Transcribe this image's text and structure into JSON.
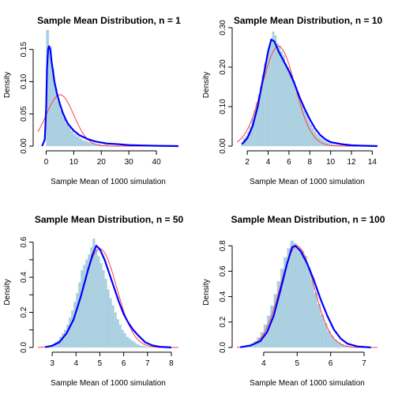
{
  "colors": {
    "bars": "#a9cfe0",
    "density": "#0000ff",
    "normal": "#ff4040",
    "axis": "#000000"
  },
  "chart_data": [
    {
      "type": "bar",
      "title": "Sample Mean Distribution, n = 1",
      "xlabel": "Sample Mean of 1000 simulation",
      "ylabel": "Density",
      "xlim": [
        -3,
        48
      ],
      "ylim": [
        0,
        0.19
      ],
      "xticks": [
        0,
        10,
        20,
        30,
        40
      ],
      "yticks": [
        0,
        0.05,
        0.1,
        0.15
      ],
      "xtick_labels": [
        "0",
        "10",
        "20",
        "30",
        "40"
      ],
      "ytick_labels": [
        "0.00",
        "0.05",
        "0.10",
        "0.15"
      ],
      "bin_width": 1,
      "bin_start": 0,
      "hist": [
        0.18,
        0.155,
        0.12,
        0.09,
        0.07,
        0.055,
        0.045,
        0.036,
        0.029,
        0.023,
        0.018,
        0.015,
        0.012,
        0.009,
        0.008,
        0.006,
        0.005,
        0.004,
        0.003,
        0.003,
        0.002,
        0.002,
        0.0015,
        0.001,
        0.001,
        0.001,
        0.001,
        0.0005,
        0.0005,
        0.0005
      ],
      "density": {
        "x": [
          -1.5,
          -0.5,
          0,
          0.3,
          0.7,
          1.0,
          1.5,
          2.0,
          3.0,
          4.0,
          5.0,
          6.0,
          7.0,
          8.0,
          10.0,
          12.0,
          15.0,
          18.0,
          22.0,
          26.0,
          30.0,
          35.0,
          40.0,
          48.0
        ],
        "y": [
          0.0,
          0.01,
          0.06,
          0.12,
          0.15,
          0.155,
          0.15,
          0.13,
          0.1,
          0.08,
          0.065,
          0.052,
          0.042,
          0.034,
          0.024,
          0.017,
          0.011,
          0.007,
          0.004,
          0.003,
          0.0015,
          0.001,
          0.0005,
          0.0
        ]
      },
      "normal": {
        "mean": 5.0,
        "sd": 5.0
      }
    },
    {
      "type": "bar",
      "title": "Sample Mean Distribution, n = 10",
      "xlabel": "Sample Mean of 1000 simulation",
      "ylabel": "Density",
      "xlim": [
        1.0,
        14.5
      ],
      "ylim": [
        0,
        0.31
      ],
      "xticks": [
        2,
        4,
        6,
        8,
        10,
        12,
        14
      ],
      "yticks": [
        0,
        0.1,
        0.2,
        0.3
      ],
      "xtick_labels": [
        "2",
        "4",
        "6",
        "8",
        "10",
        "12",
        "14"
      ],
      "ytick_labels": [
        "0.00",
        "0.10",
        "0.20",
        "0.30"
      ],
      "bin_width": 0.2,
      "bin_start": 1.4,
      "hist": [
        0.01,
        0.02,
        0.025,
        0.035,
        0.05,
        0.07,
        0.09,
        0.11,
        0.13,
        0.15,
        0.18,
        0.21,
        0.23,
        0.25,
        0.27,
        0.29,
        0.28,
        0.26,
        0.255,
        0.24,
        0.23,
        0.21,
        0.2,
        0.19,
        0.18,
        0.165,
        0.15,
        0.135,
        0.12,
        0.105,
        0.09,
        0.08,
        0.065,
        0.055,
        0.045,
        0.037,
        0.03,
        0.024,
        0.019,
        0.015,
        0.012,
        0.009,
        0.007,
        0.005,
        0.004,
        0.003,
        0.002,
        0.002,
        0.001,
        0.001
      ],
      "density": {
        "x": [
          1.5,
          2.0,
          2.5,
          3.0,
          3.5,
          4.0,
          4.3,
          4.6,
          5.0,
          5.5,
          6.0,
          6.5,
          7.0,
          7.5,
          8.0,
          8.5,
          9.0,
          9.5,
          10.0,
          11.0,
          12.0,
          13.0,
          14.5
        ],
        "y": [
          0.005,
          0.02,
          0.05,
          0.1,
          0.17,
          0.24,
          0.27,
          0.265,
          0.24,
          0.215,
          0.19,
          0.16,
          0.125,
          0.095,
          0.068,
          0.045,
          0.028,
          0.017,
          0.01,
          0.005,
          0.002,
          0.001,
          0.0
        ]
      },
      "normal": {
        "mean": 5.0,
        "sd": 1.58
      }
    },
    {
      "type": "bar",
      "title": "Sample Mean Distribution, n = 50",
      "xlabel": "Sample Mean of 1000 simulation",
      "ylabel": "Density",
      "xlim": [
        2.4,
        8.3
      ],
      "ylim": [
        0,
        0.63
      ],
      "xticks": [
        3,
        4,
        5,
        6,
        7,
        8
      ],
      "yticks": [
        0,
        0.2,
        0.4,
        0.6
      ],
      "xtick_labels": [
        "3",
        "4",
        "5",
        "6",
        "7",
        "8"
      ],
      "ytick_labels": [
        "0.0",
        "0.2",
        "0.4",
        "0.6"
      ],
      "minor_yticks": [
        0.1,
        0.3,
        0.5
      ],
      "bin_width": 0.1,
      "bin_start": 2.7,
      "hist": [
        0.005,
        0.01,
        0.01,
        0.02,
        0.03,
        0.04,
        0.06,
        0.08,
        0.1,
        0.13,
        0.17,
        0.21,
        0.26,
        0.31,
        0.37,
        0.44,
        0.47,
        0.5,
        0.53,
        0.57,
        0.62,
        0.56,
        0.52,
        0.48,
        0.44,
        0.39,
        0.33,
        0.28,
        0.24,
        0.2,
        0.16,
        0.13,
        0.1,
        0.08,
        0.06,
        0.05,
        0.04,
        0.03,
        0.02,
        0.015,
        0.01,
        0.008,
        0.005,
        0.004,
        0.003,
        0.002,
        0.001
      ],
      "density": {
        "x": [
          2.7,
          3.0,
          3.3,
          3.6,
          3.9,
          4.2,
          4.5,
          4.7,
          4.85,
          5.0,
          5.2,
          5.4,
          5.6,
          5.8,
          6.0,
          6.2,
          6.4,
          6.6,
          6.9,
          7.2,
          7.5,
          8.0
        ],
        "y": [
          0.002,
          0.01,
          0.03,
          0.08,
          0.16,
          0.29,
          0.44,
          0.53,
          0.58,
          0.56,
          0.5,
          0.42,
          0.34,
          0.26,
          0.19,
          0.14,
          0.1,
          0.07,
          0.03,
          0.012,
          0.004,
          0.0
        ]
      },
      "normal": {
        "mean": 5.0,
        "sd": 0.71
      }
    },
    {
      "type": "bar",
      "title": "Sample Mean Distribution, n = 100",
      "xlabel": "Sample Mean of 1000 simulation",
      "ylabel": "Density",
      "xlim": [
        3.2,
        7.4
      ],
      "ylim": [
        0,
        0.87
      ],
      "xticks": [
        4,
        5,
        6,
        7
      ],
      "yticks": [
        0,
        0.2,
        0.4,
        0.6,
        0.8
      ],
      "xtick_labels": [
        "4",
        "5",
        "6",
        "7"
      ],
      "ytick_labels": [
        "0.0",
        "0.2",
        "0.4",
        "0.6",
        "0.8"
      ],
      "bin_width": 0.1,
      "bin_start": 3.3,
      "hist": [
        0.005,
        0.01,
        0.02,
        0.03,
        0.05,
        0.08,
        0.12,
        0.18,
        0.25,
        0.33,
        0.42,
        0.52,
        0.62,
        0.71,
        0.78,
        0.84,
        0.82,
        0.78,
        0.76,
        0.72,
        0.63,
        0.53,
        0.43,
        0.34,
        0.26,
        0.19,
        0.13,
        0.09,
        0.06,
        0.04,
        0.025,
        0.015,
        0.01,
        0.006,
        0.004,
        0.002,
        0.001
      ],
      "density": {
        "x": [
          3.3,
          3.6,
          3.9,
          4.1,
          4.3,
          4.5,
          4.7,
          4.85,
          4.95,
          5.1,
          5.3,
          5.5,
          5.7,
          5.9,
          6.1,
          6.3,
          6.5,
          6.8,
          7.2
        ],
        "y": [
          0.002,
          0.015,
          0.05,
          0.12,
          0.25,
          0.45,
          0.66,
          0.79,
          0.8,
          0.76,
          0.66,
          0.53,
          0.38,
          0.25,
          0.14,
          0.07,
          0.03,
          0.008,
          0.0
        ]
      },
      "normal": {
        "mean": 5.0,
        "sd": 0.5
      }
    }
  ]
}
